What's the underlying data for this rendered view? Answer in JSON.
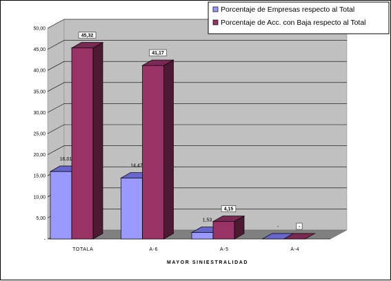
{
  "chart_data": {
    "type": "bar",
    "xlabel": "MAYOR SINIESTRALIDAD",
    "categories": [
      "TOTALA",
      "A-6",
      "A-5",
      "A-4"
    ],
    "series": [
      {
        "name": "Porcentaje de Empresas respecto al Total",
        "values": [
          16.01,
          14.47,
          1.53,
          0
        ],
        "labels": [
          "16,01",
          "14,47",
          "1,53",
          "-"
        ],
        "color": "#9999FF",
        "top_color": "#6666CC",
        "side_color": "#5C5CA8"
      },
      {
        "name": "Porcentaje de Acc. con Baja respecto al Total",
        "values": [
          45.32,
          41.17,
          4.15,
          0
        ],
        "labels": [
          "45,32",
          "41,17",
          "4,15",
          "-"
        ],
        "color": "#993366",
        "top_color": "#7A2952",
        "side_color": "#4D1A33"
      }
    ],
    "ylim": [
      0,
      50
    ],
    "yticks": [
      "-",
      "5,00",
      "10,00",
      "15,00",
      "20,00",
      "25,00",
      "30,00",
      "35,00",
      "40,00",
      "45,00",
      "50,00"
    ],
    "grid": true,
    "three_d": true,
    "legend_position": "top-right",
    "colors": {
      "wall": "#C0C0C0",
      "floor": "#808080",
      "gridline": "#000000"
    }
  }
}
